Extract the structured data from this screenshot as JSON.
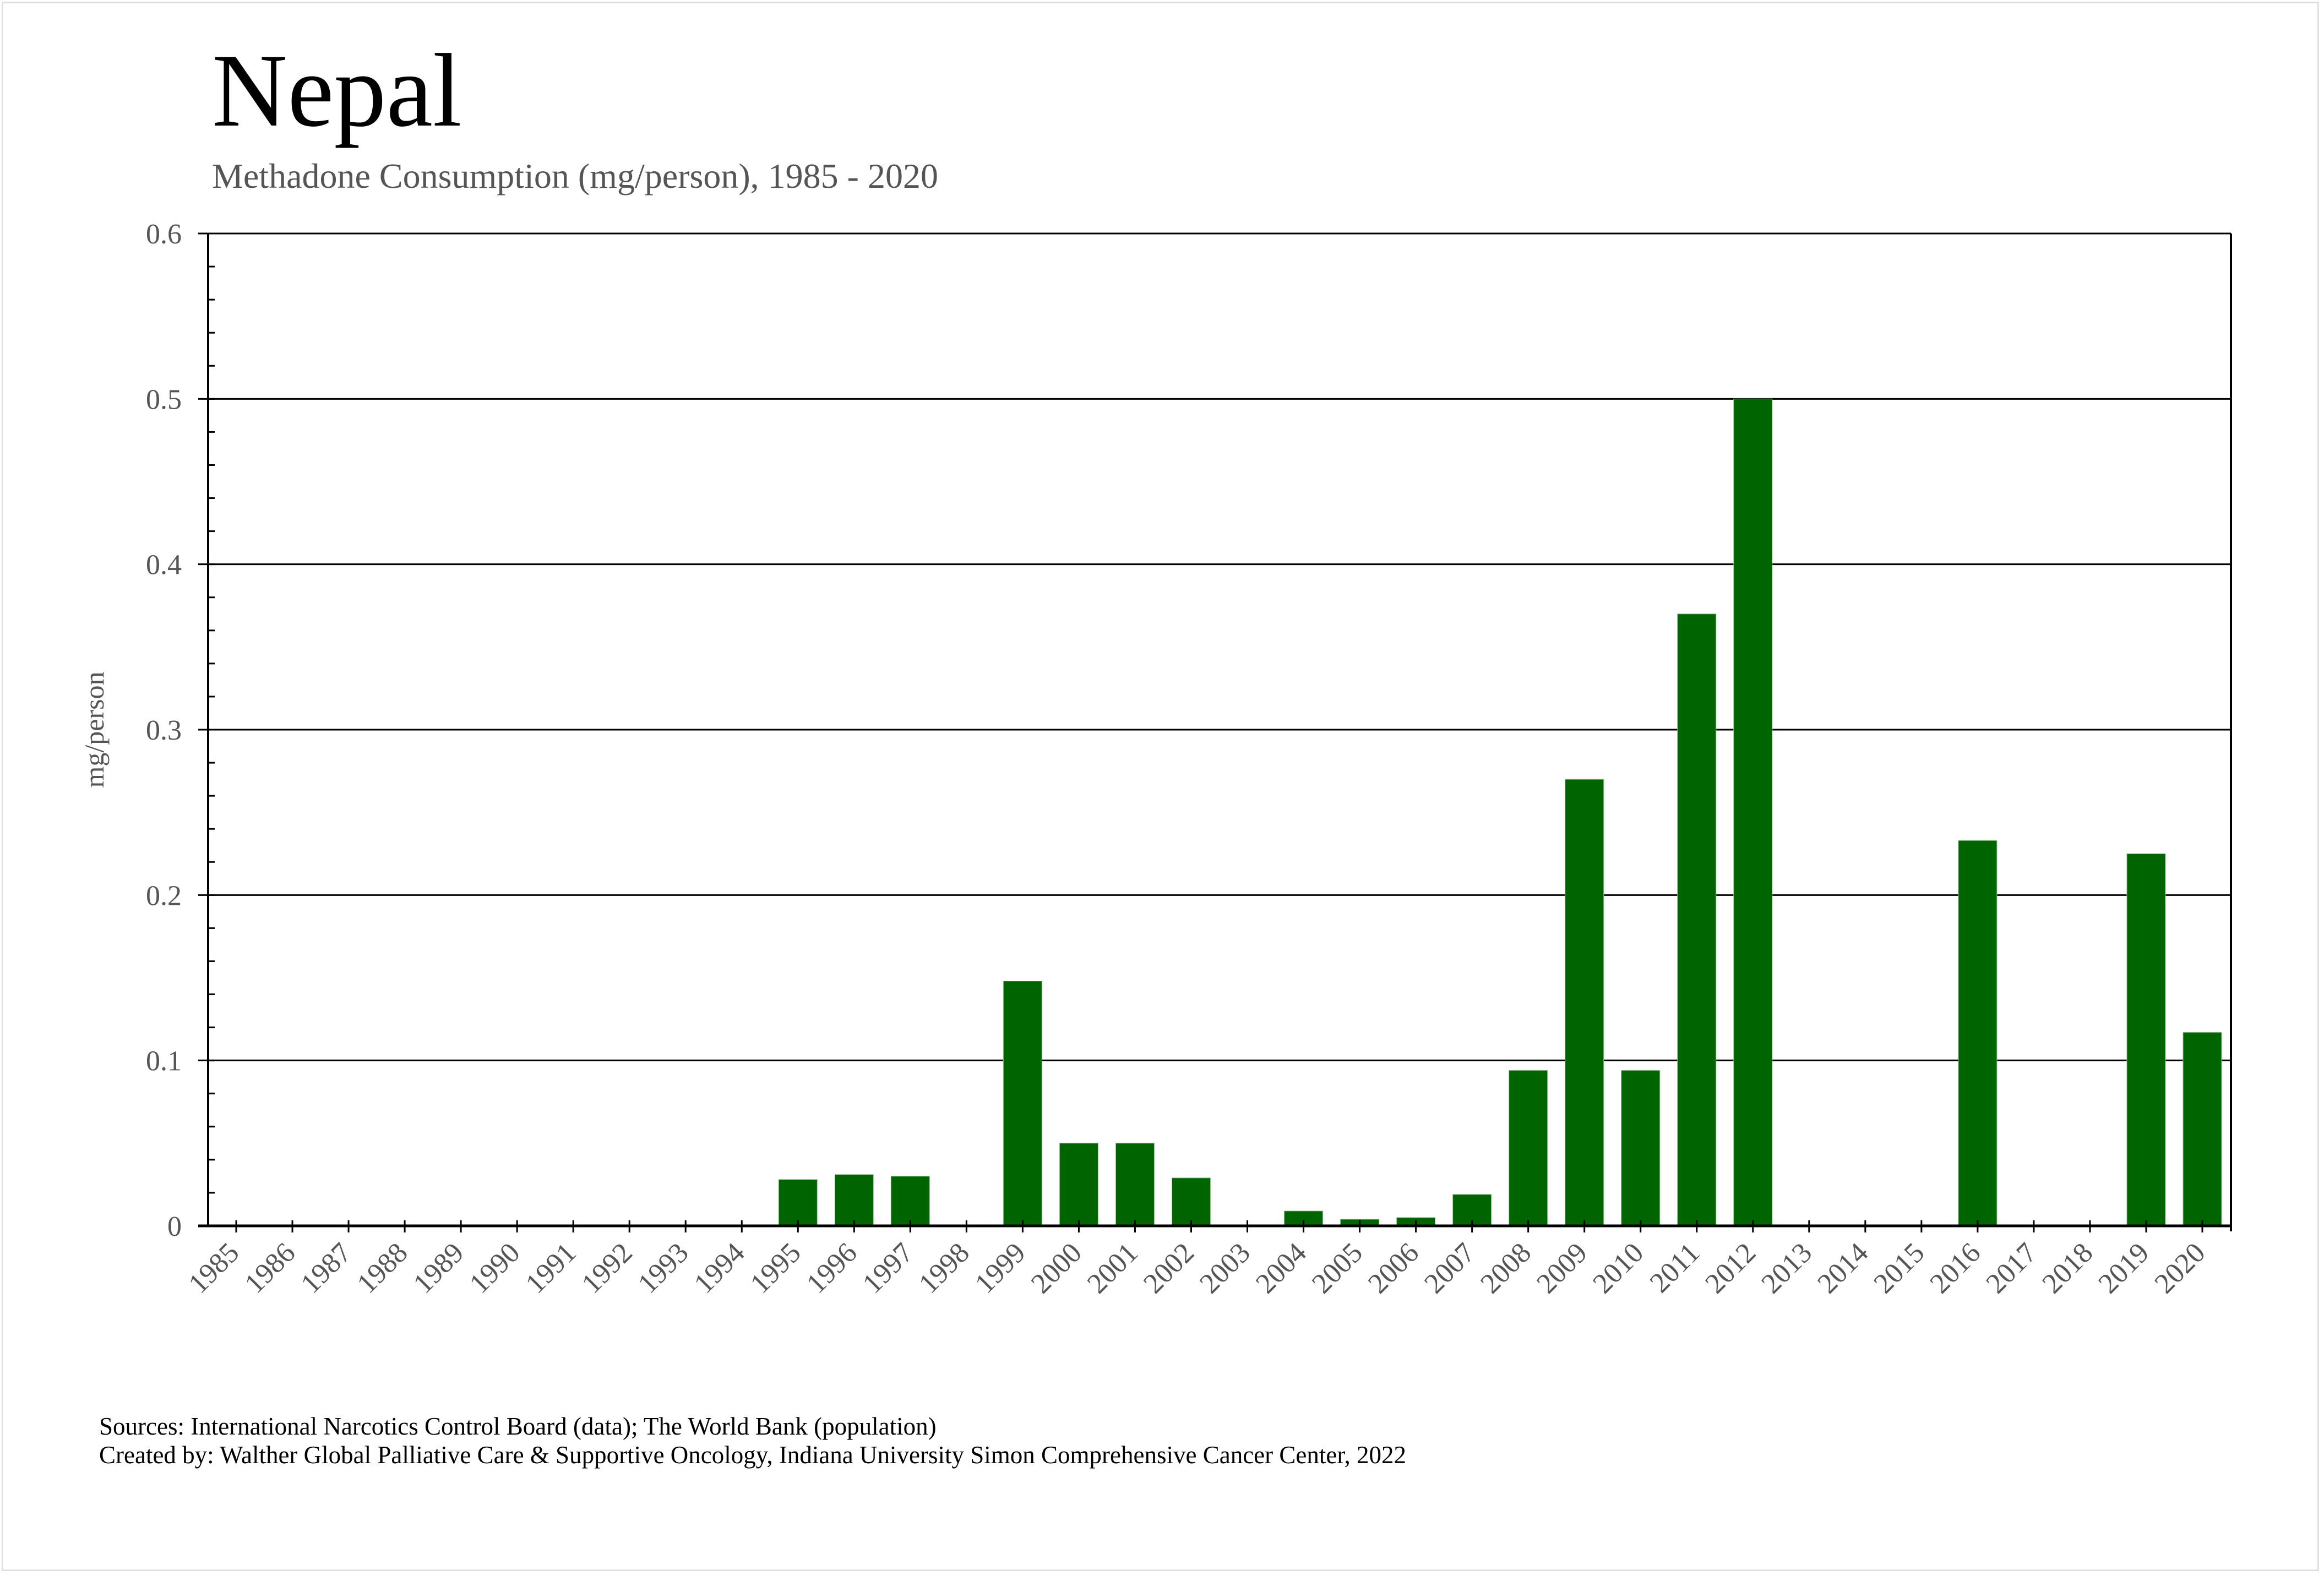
{
  "chart_data": {
    "type": "bar",
    "title": "Nepal",
    "subtitle": "Methadone Consumption (mg/person), 1985 - 2020",
    "xlabel": "",
    "ylabel": "mg/person",
    "ylim": [
      0,
      0.6
    ],
    "yticks": [
      0,
      0.1,
      0.2,
      0.3,
      0.4,
      0.5,
      0.6
    ],
    "ytick_labels": [
      "0",
      "0.1",
      "0.2",
      "0.3",
      "0.4",
      "0.5",
      "0.6"
    ],
    "y_minor_step": 0.02,
    "grid": "horizontal major",
    "legend": "none",
    "bar_color": "#006400",
    "categories": [
      "1985",
      "1986",
      "1987",
      "1988",
      "1989",
      "1990",
      "1991",
      "1992",
      "1993",
      "1994",
      "1995",
      "1996",
      "1997",
      "1998",
      "1999",
      "2000",
      "2001",
      "2002",
      "2003",
      "2004",
      "2005",
      "2006",
      "2007",
      "2008",
      "2009",
      "2010",
      "2011",
      "2012",
      "2013",
      "2014",
      "2015",
      "2016",
      "2017",
      "2018",
      "2019",
      "2020"
    ],
    "values": [
      0,
      0,
      0,
      0,
      0,
      0,
      0,
      0,
      0,
      0,
      0.028,
      0.031,
      0.03,
      0,
      0.148,
      0.05,
      0.05,
      0.029,
      0,
      0.009,
      0.004,
      0.005,
      0.019,
      0.094,
      0.27,
      0.094,
      0.37,
      0.5,
      0,
      0,
      0,
      0.233,
      0,
      0,
      0.225,
      0.117
    ]
  },
  "footer": {
    "sources": "Sources: International Narcotics Control Board (data); The World Bank (population)",
    "created_by": "Created by: Walther Global Palliative Care & Supportive Oncology, Indiana University Simon Comprehensive Cancer Center, 2022"
  }
}
